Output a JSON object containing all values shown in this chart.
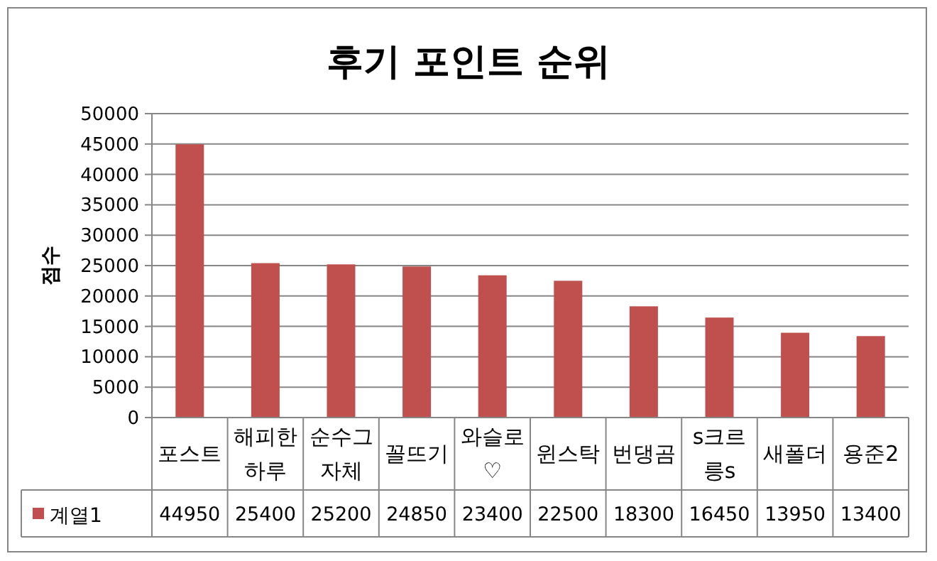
{
  "chart_data": {
    "type": "bar",
    "title": "후기 포인트 순위",
    "ylabel": "점수",
    "categories": [
      "포스트",
      "해피한하루",
      "순수그자체",
      "꼴뜨기",
      "와슬로♡",
      "윈스탁",
      "번댕곰",
      "s크르릉s",
      "새폴더",
      "용준2"
    ],
    "series": [
      {
        "name": "계열1",
        "color": "#c0504d",
        "values": [
          44950,
          25400,
          25200,
          24850,
          23400,
          22500,
          18300,
          16450,
          13950,
          13400
        ]
      }
    ],
    "ylim": [
      0,
      50000
    ],
    "yticks": [
      0,
      5000,
      10000,
      15000,
      20000,
      25000,
      30000,
      35000,
      40000,
      45000,
      50000
    ],
    "grid": "y",
    "legend": "bottom",
    "data_labels": true
  }
}
